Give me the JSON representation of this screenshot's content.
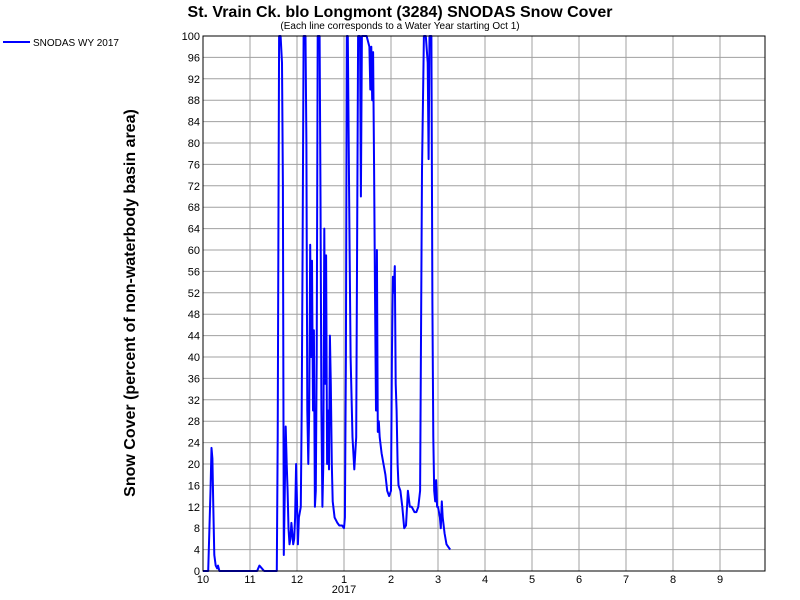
{
  "chart_data": {
    "type": "line",
    "title": "St. Vrain Ck. blo Longmont (3284) SNODAS Snow Cover",
    "subtitle": "(Each line corresponds to a Water Year starting Oct 1)",
    "ylabel": "Snow Cover (percent of non-waterbody basin area)",
    "xlabel": "",
    "ylim": [
      0,
      100
    ],
    "yticks": [
      0,
      4,
      8,
      12,
      16,
      20,
      24,
      28,
      32,
      36,
      40,
      44,
      48,
      52,
      56,
      60,
      64,
      68,
      72,
      76,
      80,
      84,
      88,
      92,
      96,
      100
    ],
    "xlim": [
      0,
      12
    ],
    "xticks": [
      {
        "x": 0,
        "label": "10"
      },
      {
        "x": 1,
        "label": "11"
      },
      {
        "x": 2,
        "label": "12"
      },
      {
        "x": 3,
        "label": "1"
      },
      {
        "x": 4,
        "label": "2"
      },
      {
        "x": 5,
        "label": "3"
      },
      {
        "x": 6,
        "label": "4"
      },
      {
        "x": 7,
        "label": "5"
      },
      {
        "x": 8,
        "label": "6"
      },
      {
        "x": 9,
        "label": "7"
      },
      {
        "x": 10,
        "label": "8"
      },
      {
        "x": 11,
        "label": "9"
      }
    ],
    "year_label": {
      "x": 3,
      "label": "2017"
    },
    "grid": true,
    "legend_placement": "top-left",
    "series": [
      {
        "name": "SNODAS WY 2017",
        "color": "#0000ff",
        "points": [
          [
            0.0,
            0
          ],
          [
            0.11,
            0
          ],
          [
            0.16,
            15
          ],
          [
            0.18,
            23
          ],
          [
            0.2,
            21
          ],
          [
            0.22,
            12
          ],
          [
            0.24,
            3
          ],
          [
            0.27,
            1
          ],
          [
            0.3,
            0.5
          ],
          [
            0.32,
            1
          ],
          [
            0.35,
            0
          ],
          [
            1.0,
            0
          ],
          [
            1.15,
            0
          ],
          [
            1.2,
            1
          ],
          [
            1.25,
            0.5
          ],
          [
            1.3,
            0
          ],
          [
            1.55,
            0
          ],
          [
            1.57,
            0
          ],
          [
            1.59,
            25
          ],
          [
            1.62,
            100
          ],
          [
            1.65,
            100
          ],
          [
            1.68,
            95
          ],
          [
            1.7,
            72
          ],
          [
            1.72,
            3
          ],
          [
            1.74,
            15
          ],
          [
            1.76,
            27
          ],
          [
            1.78,
            20
          ],
          [
            1.8,
            15
          ],
          [
            1.82,
            8
          ],
          [
            1.84,
            5
          ],
          [
            1.86,
            6
          ],
          [
            1.88,
            9
          ],
          [
            1.9,
            7
          ],
          [
            1.92,
            5
          ],
          [
            1.94,
            6
          ],
          [
            1.96,
            10
          ],
          [
            1.98,
            20
          ],
          [
            2.0,
            13
          ],
          [
            2.02,
            5
          ],
          [
            2.04,
            10
          ],
          [
            2.08,
            12
          ],
          [
            2.1,
            30
          ],
          [
            2.12,
            60
          ],
          [
            2.14,
            100
          ],
          [
            2.18,
            100
          ],
          [
            2.2,
            80
          ],
          [
            2.22,
            30
          ],
          [
            2.24,
            20
          ],
          [
            2.26,
            30
          ],
          [
            2.28,
            61
          ],
          [
            2.3,
            40
          ],
          [
            2.32,
            58
          ],
          [
            2.34,
            30
          ],
          [
            2.36,
            45
          ],
          [
            2.38,
            12
          ],
          [
            2.4,
            15
          ],
          [
            2.42,
            40
          ],
          [
            2.44,
            100
          ],
          [
            2.48,
            100
          ],
          [
            2.5,
            70
          ],
          [
            2.52,
            30
          ],
          [
            2.54,
            12
          ],
          [
            2.56,
            20
          ],
          [
            2.58,
            64
          ],
          [
            2.6,
            35
          ],
          [
            2.62,
            59
          ],
          [
            2.64,
            20
          ],
          [
            2.66,
            30
          ],
          [
            2.68,
            19
          ],
          [
            2.7,
            44
          ],
          [
            2.72,
            35
          ],
          [
            2.74,
            20
          ],
          [
            2.76,
            13
          ],
          [
            2.8,
            10
          ],
          [
            2.86,
            9
          ],
          [
            2.9,
            8.5
          ],
          [
            2.96,
            8.5
          ],
          [
            3.0,
            8
          ],
          [
            3.02,
            10
          ],
          [
            3.04,
            40
          ],
          [
            3.06,
            100
          ],
          [
            3.08,
            100
          ],
          [
            3.12,
            60
          ],
          [
            3.14,
            40
          ],
          [
            3.18,
            25
          ],
          [
            3.22,
            19
          ],
          [
            3.26,
            25
          ],
          [
            3.3,
            100
          ],
          [
            3.34,
            100
          ],
          [
            3.36,
            70
          ],
          [
            3.38,
            100
          ],
          [
            3.44,
            100
          ],
          [
            3.48,
            100
          ],
          [
            3.54,
            98
          ],
          [
            3.56,
            90
          ],
          [
            3.58,
            98
          ],
          [
            3.6,
            88
          ],
          [
            3.62,
            97
          ],
          [
            3.64,
            75
          ],
          [
            3.66,
            52
          ],
          [
            3.68,
            30
          ],
          [
            3.7,
            60
          ],
          [
            3.72,
            26
          ],
          [
            3.74,
            28
          ],
          [
            3.76,
            25
          ],
          [
            3.8,
            22
          ],
          [
            3.84,
            20
          ],
          [
            3.88,
            18
          ],
          [
            3.92,
            15
          ],
          [
            3.96,
            14
          ],
          [
            4.0,
            15
          ],
          [
            4.02,
            40
          ],
          [
            4.04,
            55
          ],
          [
            4.06,
            52
          ],
          [
            4.08,
            57
          ],
          [
            4.1,
            35
          ],
          [
            4.12,
            30
          ],
          [
            4.14,
            20
          ],
          [
            4.16,
            16
          ],
          [
            4.2,
            15
          ],
          [
            4.24,
            12
          ],
          [
            4.28,
            8
          ],
          [
            4.32,
            8.5
          ],
          [
            4.36,
            15
          ],
          [
            4.4,
            12
          ],
          [
            4.44,
            12
          ],
          [
            4.5,
            11
          ],
          [
            4.54,
            11
          ],
          [
            4.58,
            12
          ],
          [
            4.62,
            15
          ],
          [
            4.66,
            75
          ],
          [
            4.7,
            100
          ],
          [
            4.74,
            100
          ],
          [
            4.78,
            95
          ],
          [
            4.8,
            77
          ],
          [
            4.82,
            100
          ],
          [
            4.86,
            100
          ],
          [
            4.88,
            50
          ],
          [
            4.9,
            25
          ],
          [
            4.92,
            15
          ],
          [
            4.94,
            13
          ],
          [
            4.96,
            17
          ],
          [
            4.98,
            12
          ],
          [
            5.0,
            12
          ],
          [
            5.04,
            10
          ],
          [
            5.06,
            8
          ],
          [
            5.08,
            13
          ],
          [
            5.1,
            10
          ],
          [
            5.14,
            7
          ],
          [
            5.18,
            5
          ],
          [
            5.22,
            4.5
          ],
          [
            5.26,
            4
          ]
        ]
      }
    ]
  }
}
